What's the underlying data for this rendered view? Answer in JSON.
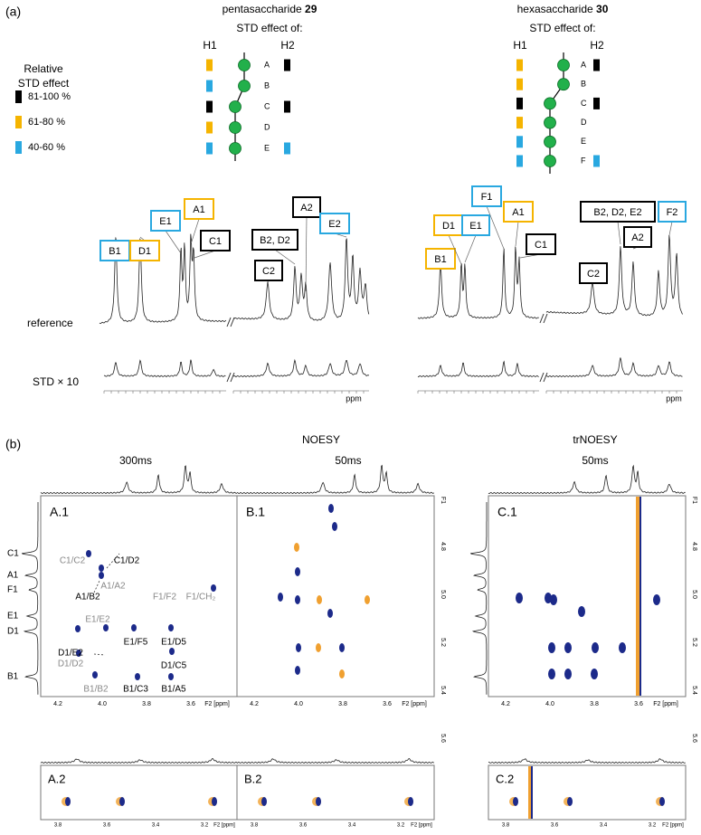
{
  "panel_a": {
    "label": "(a)",
    "legend": {
      "title_lines": [
        "Relative",
        "STD effect"
      ],
      "items": [
        {
          "label": "81-100 %",
          "color": "#000000"
        },
        {
          "label": "61-80 %",
          "color": "#f5b400"
        },
        {
          "label": "40-60 %",
          "color": "#29a8e0"
        }
      ]
    },
    "compounds": [
      {
        "name": "pentasaccharide",
        "number": "29",
        "subtitle": "STD effect of:",
        "h1": "H1",
        "h2": "H2",
        "residues": [
          {
            "label": "A",
            "h1": "#f5b400",
            "h2": "#000000"
          },
          {
            "label": "B",
            "h1": "#29a8e0",
            "h2": null
          },
          {
            "label": "C",
            "h1": "#000000",
            "h2": "#000000"
          },
          {
            "label": "D",
            "h1": "#f5b400",
            "h2": null
          },
          {
            "label": "E",
            "h1": "#29a8e0",
            "h2": "#29a8e0"
          }
        ]
      },
      {
        "name": "hexasaccharide",
        "number": "30",
        "subtitle": "STD effect of:",
        "h1": "H1",
        "h2": "H2",
        "residues": [
          {
            "label": "A",
            "h1": "#f5b400",
            "h2": "#000000"
          },
          {
            "label": "B",
            "h1": "#f5b400",
            "h2": null
          },
          {
            "label": "C",
            "h1": "#000000",
            "h2": "#000000"
          },
          {
            "label": "D",
            "h1": "#f5b400",
            "h2": null
          },
          {
            "label": "E",
            "h1": "#29a8e0",
            "h2": null
          },
          {
            "label": "F",
            "h1": "#29a8e0",
            "h2": "#29a8e0"
          }
        ]
      }
    ],
    "spectra": [
      {
        "peaks": [
          {
            "label": "B1",
            "color": "#29a8e0"
          },
          {
            "label": "D1",
            "color": "#f5b400"
          },
          {
            "label": "E1",
            "color": "#29a8e0"
          },
          {
            "label": "A1",
            "color": "#f5b400"
          },
          {
            "label": "C1",
            "color": "#000000"
          },
          {
            "label": "B2, D2",
            "color": "#000000"
          },
          {
            "label": "C2",
            "color": "#000000"
          },
          {
            "label": "A2",
            "color": "#000000"
          },
          {
            "label": "E2",
            "color": "#29a8e0"
          }
        ]
      },
      {
        "peaks": [
          {
            "label": "B1",
            "color": "#f5b400"
          },
          {
            "label": "D1",
            "color": "#f5b400"
          },
          {
            "label": "E1",
            "color": "#29a8e0"
          },
          {
            "label": "F1",
            "color": "#29a8e0"
          },
          {
            "label": "A1",
            "color": "#f5b400"
          },
          {
            "label": "C1",
            "color": "#000000"
          },
          {
            "label": "B2, D2, E2",
            "color": "#000000"
          },
          {
            "label": "C2",
            "color": "#000000"
          },
          {
            "label": "A2",
            "color": "#000000"
          },
          {
            "label": "F2",
            "color": "#29a8e0"
          }
        ]
      }
    ],
    "row_labels": [
      "reference",
      "STD × 10"
    ],
    "axis_unit": "ppm"
  },
  "panel_b": {
    "label": "(b)",
    "noesy_title": "NOESY",
    "trnoesy_title": "trNOESY",
    "mixing_times": [
      "300ms",
      "50ms",
      "50ms"
    ],
    "plots": [
      "A.1",
      "B.1",
      "C.1",
      "A.2",
      "B.2",
      "C.2"
    ],
    "f1_labels": [
      "C1",
      "A1",
      "F1",
      "E1",
      "D1",
      "B1"
    ],
    "cross_peaks": [
      {
        "label": "C1/C2",
        "color": "#888888"
      },
      {
        "label": "C1/D2",
        "color": "#000000"
      },
      {
        "label": "A1/A2",
        "color": "#888888"
      },
      {
        "label": "A1/B2",
        "color": "#000000"
      },
      {
        "label": "F1/F2",
        "color": "#888888"
      },
      {
        "label": "F1/CH₂",
        "color": "#888888"
      },
      {
        "label": "E1/E2",
        "color": "#888888"
      },
      {
        "label": "D1/E2",
        "color": "#000000"
      },
      {
        "label": "D1/D2",
        "color": "#888888"
      },
      {
        "label": "E1/F5",
        "color": "#000000"
      },
      {
        "label": "E1/D5",
        "color": "#000000"
      },
      {
        "label": "D1/C5",
        "color": "#000000"
      },
      {
        "label": "B1/B2",
        "color": "#888888"
      },
      {
        "label": "B1/C3",
        "color": "#000000"
      },
      {
        "label": "B1/A5",
        "color": "#000000"
      }
    ],
    "x_ticks": [
      "4.2",
      "4.0",
      "3.8",
      "3.6",
      "F2 [ppm]"
    ],
    "y_ticks": [
      "F1",
      "4.8",
      "5.0",
      "5.2",
      "5.4",
      "5.6"
    ],
    "small_x_ticks": [
      "3.8",
      "3.6",
      "3.4",
      "3.2",
      "F2 [ppm]"
    ]
  }
}
